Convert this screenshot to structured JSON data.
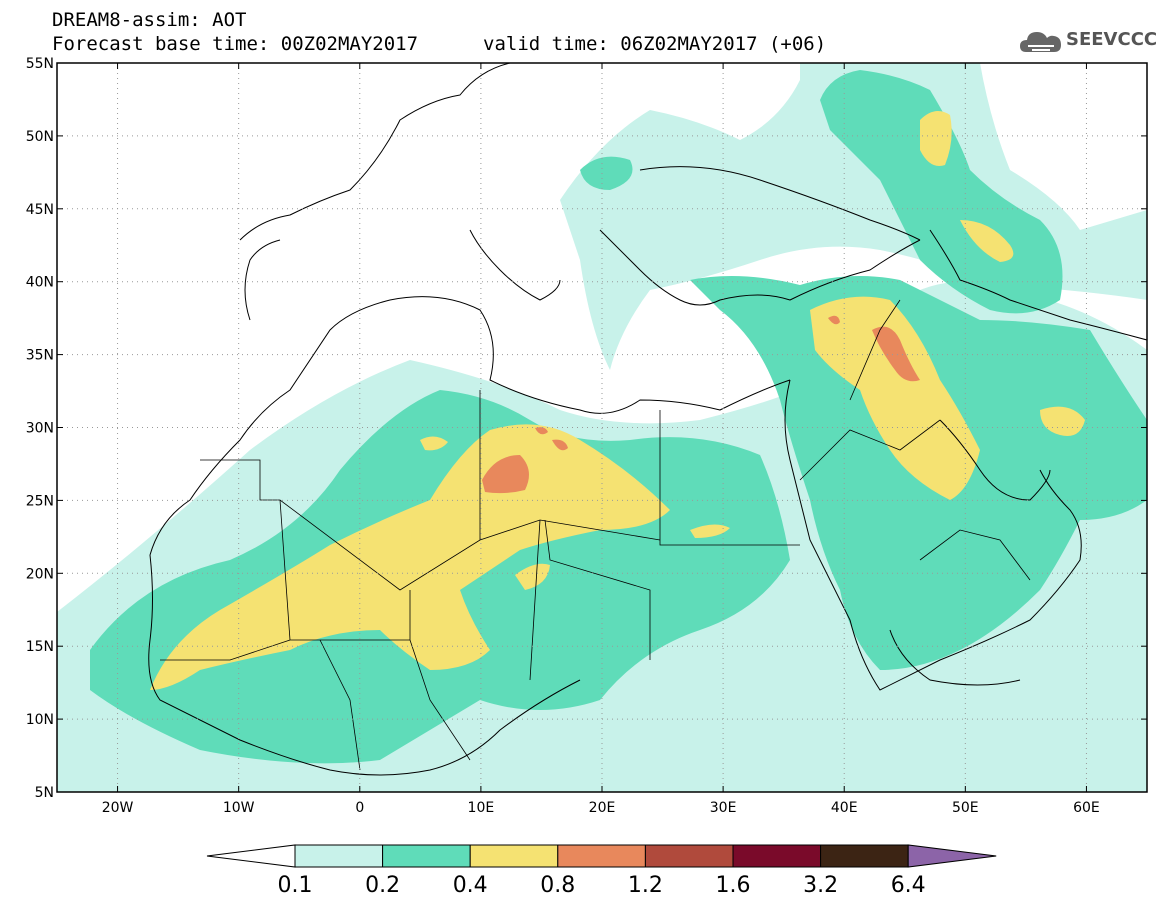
{
  "header": {
    "title": "DREAM8-assim: AOT",
    "base_time": "Forecast base time: 00Z02MAY2017",
    "valid_time": "valid time: 06Z02MAY2017 (+06)"
  },
  "logo": {
    "text": "SEEVCCC",
    "icon": "cloud-icon"
  },
  "map": {
    "lon_range": [
      -25,
      65
    ],
    "lat_range": [
      5,
      55
    ],
    "lon_ticks": [
      "20W",
      "10W",
      "0",
      "10E",
      "20E",
      "30E",
      "40E",
      "50E",
      "60E"
    ],
    "lon_tick_values": [
      -20,
      -10,
      0,
      10,
      20,
      30,
      40,
      50,
      60
    ],
    "lat_ticks": [
      "5N",
      "10N",
      "15N",
      "20N",
      "25N",
      "30N",
      "35N",
      "40N",
      "45N",
      "50N",
      "55N"
    ],
    "lat_tick_values": [
      5,
      10,
      15,
      20,
      25,
      30,
      35,
      40,
      45,
      50,
      55
    ],
    "grid": "dotted"
  },
  "colorbar": {
    "labels": [
      "0.1",
      "0.2",
      "0.4",
      "0.8",
      "1.2",
      "1.6",
      "3.2",
      "6.4"
    ],
    "colors": [
      "#ffffff",
      "#c8f2ea",
      "#5fdcb9",
      "#f5e272",
      "#e8885c",
      "#b04a3c",
      "#7a0a2a",
      "#3c2414",
      "#8c64a8"
    ]
  }
}
